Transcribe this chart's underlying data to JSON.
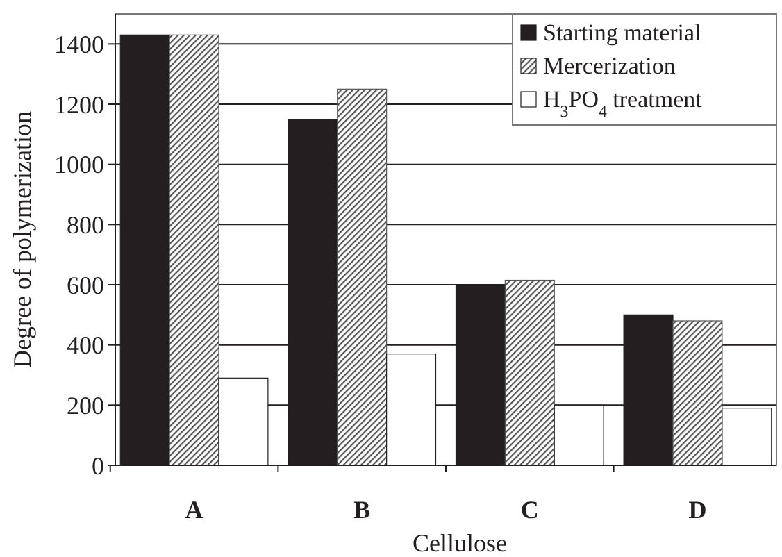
{
  "chart_data": {
    "type": "bar",
    "xlabel": "Cellulose",
    "ylabel": "Degree of polymerization",
    "categories": [
      "A",
      "B",
      "C",
      "D"
    ],
    "series": [
      {
        "name": "Starting material",
        "color": "#231f20",
        "values": [
          1430,
          1150,
          600,
          500
        ]
      },
      {
        "name": "Mercerization",
        "color": "#555555",
        "values": [
          1430,
          1250,
          615,
          480
        ]
      },
      {
        "name": "H$_{3}$PO$_{4}$ treatment",
        "color": "#ffffff",
        "values": [
          290,
          370,
          200,
          190
        ]
      }
    ],
    "ylim": [
      0,
      1500
    ],
    "yticks": [
      0,
      200,
      400,
      600,
      800,
      1000,
      1200,
      1400
    ],
    "grid": "y",
    "legend": "top right"
  }
}
